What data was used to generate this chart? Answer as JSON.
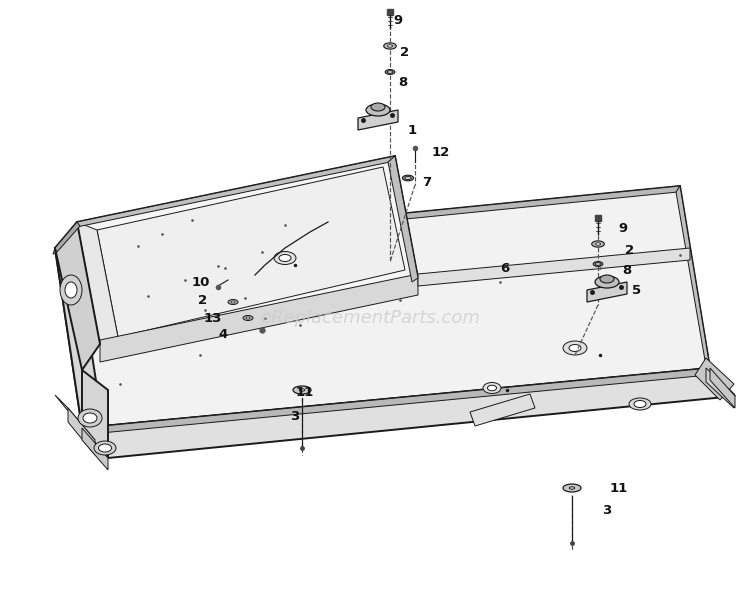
{
  "bg_color": "#ffffff",
  "watermark_text": "eReplacementParts.com",
  "watermark_color": "#cccccc",
  "watermark_fontsize": 13,
  "line_color": "#1a1a1a",
  "callout_positions": [
    [
      "9",
      393,
      20
    ],
    [
      "2",
      400,
      52
    ],
    [
      "8",
      398,
      82
    ],
    [
      "1",
      408,
      130
    ],
    [
      "12",
      432,
      153
    ],
    [
      "7",
      422,
      183
    ],
    [
      "6",
      500,
      268
    ],
    [
      "10",
      192,
      283
    ],
    [
      "2",
      198,
      300
    ],
    [
      "13",
      204,
      318
    ],
    [
      "4",
      218,
      334
    ],
    [
      "11",
      296,
      393
    ],
    [
      "3",
      290,
      416
    ],
    [
      "9",
      618,
      228
    ],
    [
      "2",
      625,
      250
    ],
    [
      "8",
      622,
      270
    ],
    [
      "5",
      632,
      291
    ],
    [
      "11",
      610,
      488
    ],
    [
      "3",
      602,
      511
    ]
  ]
}
